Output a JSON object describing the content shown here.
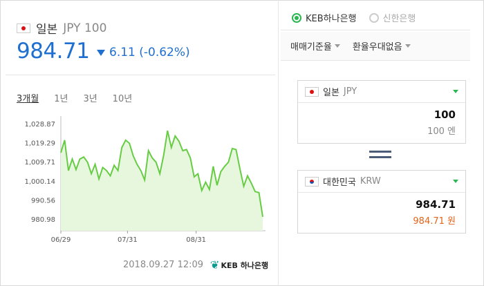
{
  "header": {
    "currency_name": "일본",
    "currency_code": "JPY 100",
    "rate": "984.71",
    "change": "6.11 (-0.62%)"
  },
  "periods": [
    {
      "label": "3개월",
      "active": true
    },
    {
      "label": "1년",
      "active": false
    },
    {
      "label": "3년",
      "active": false
    },
    {
      "label": "10년",
      "active": false
    }
  ],
  "chart_data": {
    "type": "area",
    "title": "",
    "xlabel": "",
    "ylabel": "",
    "x_ticks": [
      "06/29",
      "07/31",
      "08/31"
    ],
    "y_ticks": [
      "1,028.87",
      "1,019.29",
      "1,009.71",
      "1,000.14",
      "990.56",
      "980.98"
    ],
    "ylim": [
      978.0,
      1030.0
    ],
    "colors": {
      "line": "#66cc44",
      "fill": "#e6f7dd"
    },
    "values": [
      1014.5,
      1020.5,
      1006.0,
      1011.5,
      1006.5,
      1011.5,
      1012.5,
      1010.0,
      1004.5,
      1009.0,
      1002.0,
      1007.5,
      1006.0,
      1003.5,
      1008.5,
      1006.0,
      1017.0,
      1020.5,
      1019.0,
      1013.0,
      1009.0,
      1006.0,
      1001.5,
      1015.5,
      1012.0,
      1010.0,
      1004.5,
      1013.5,
      1025.0,
      1017.0,
      1022.5,
      1020.0,
      1015.5,
      1016.0,
      1012.0,
      1003.0,
      1004.5,
      996.5,
      1000.5,
      997.0,
      1008.0,
      999.0,
      1005.5,
      1008.0,
      1010.0,
      1016.5,
      1016.0,
      1007.0,
      998.5,
      1003.5,
      1000.0,
      996.0,
      995.5,
      984.0
    ]
  },
  "timestamp": "2018.09.27 12:09",
  "bank_logo_text": "KEB 하나은행",
  "banks": [
    {
      "label": "KEB하나은행",
      "selected": true
    },
    {
      "label": "신한은행",
      "selected": false
    }
  ],
  "selects": {
    "rate_type": "매매기준율",
    "discount": "환율우대없음"
  },
  "from_box": {
    "country": "일본",
    "code": "JPY",
    "amount": "100",
    "unit": "100 엔"
  },
  "to_box": {
    "country": "대한민국",
    "code": "KRW",
    "amount": "984.71",
    "unit": "984.71 원"
  }
}
